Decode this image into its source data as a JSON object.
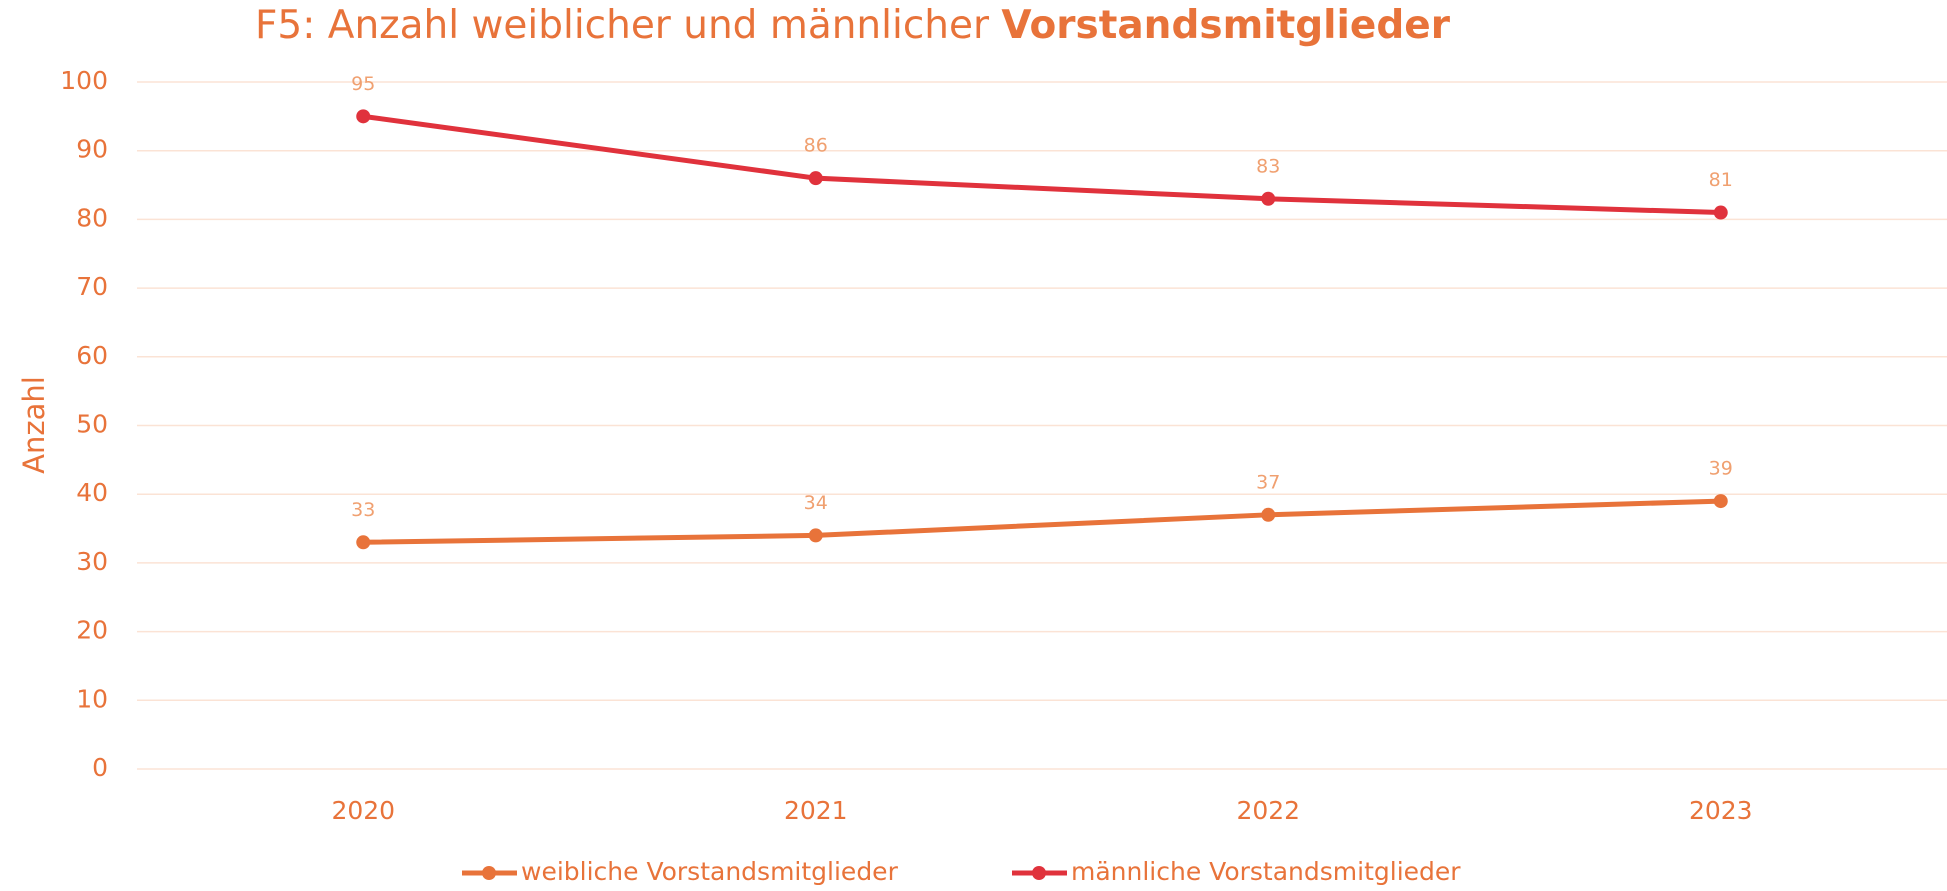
{
  "chart_data": {
    "type": "line",
    "title": {
      "text": "F5: Anzahl weiblicher und männlicher",
      "bold": "Vorstandsmitglieder"
    },
    "y_label": "Anzahl",
    "categories": [
      "2020",
      "2021",
      "2022",
      "2023"
    ],
    "series": [
      {
        "name": "weibliche Vorstandsmitglieder",
        "color": "#e8733a",
        "values": [
          33,
          34,
          37,
          39
        ]
      },
      {
        "name": "männliche Vorstandsmitglieder",
        "color": "#e0323c",
        "values": [
          95,
          86,
          83,
          81
        ]
      }
    ],
    "ylim": [
      0,
      100
    ],
    "yticks": [
      0,
      10,
      20,
      30,
      40,
      50,
      60,
      70,
      80,
      90,
      100
    ],
    "grid": true,
    "legend": "bottom"
  }
}
